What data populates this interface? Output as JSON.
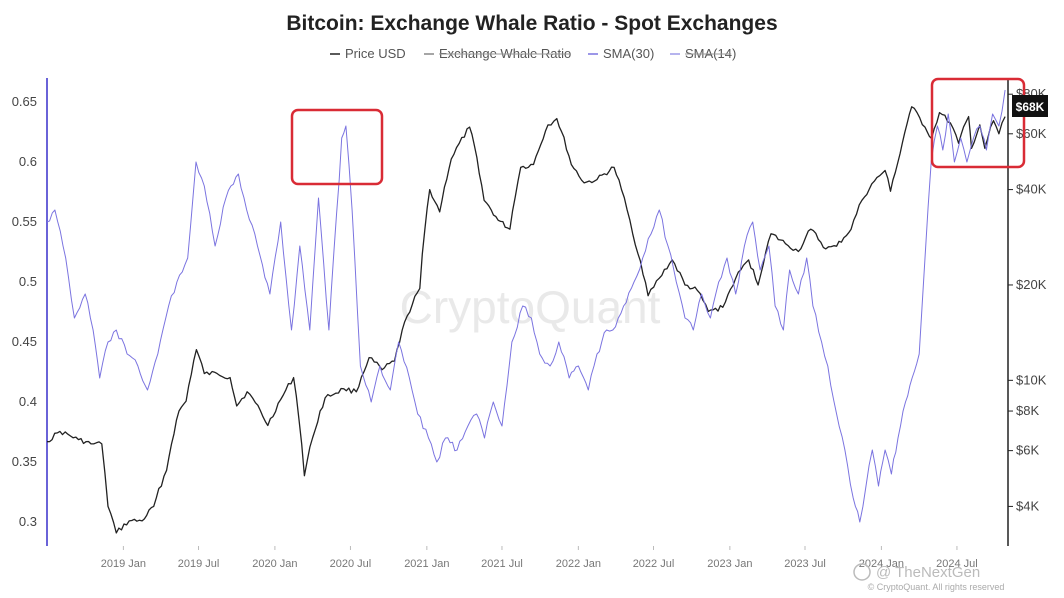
{
  "chart_data": {
    "type": "line",
    "title": "Bitcoin: Exchange Whale Ratio - Spot Exchanges",
    "legend": {
      "placement": "top-center",
      "items": [
        {
          "label": "Price USD",
          "color": "#222222",
          "hidden": false
        },
        {
          "label": "Exchange Whale Ratio",
          "color": "#888888",
          "hidden": true
        },
        {
          "label": "SMA(30)",
          "color": "#7b74e0",
          "hidden": false
        },
        {
          "label": "SMA(14)",
          "color": "#9d9ae8",
          "hidden": true
        }
      ]
    },
    "x_ticks": [
      "2019 Jan",
      "2019 Jul",
      "2020 Jan",
      "2020 Jul",
      "2021 Jan",
      "2021 Jul",
      "2022 Jan",
      "2022 Jul",
      "2023 Jan",
      "2023 Jul",
      "2024 Jan",
      "2024 Jul"
    ],
    "x_range": [
      "2018-07-01",
      "2024-11-01"
    ],
    "y_left": {
      "ticks": [
        "0.3",
        "0.35",
        "0.4",
        "0.45",
        "0.5",
        "0.55",
        "0.6",
        "0.65"
      ],
      "range": [
        0.28,
        0.67
      ]
    },
    "y_right": {
      "scale": "log",
      "ticks": [
        "$4K",
        "$6K",
        "$8K",
        "$10K",
        "$20K",
        "$40K",
        "$60K",
        "$80K"
      ],
      "range": [
        3000,
        90000
      ]
    },
    "current_price_label": "$68K",
    "watermark": "CryptoQuant",
    "footer_credit": "© CryptoQuant. All rights reserved",
    "footer_brand": "TheNextGen",
    "grid": false,
    "series": [
      {
        "name": "Price USD",
        "axis": "right",
        "color": "#222222",
        "points": [
          [
            "2018-07-01",
            6400
          ],
          [
            "2018-08-01",
            6900
          ],
          [
            "2018-09-15",
            6500
          ],
          [
            "2018-10-15",
            6300
          ],
          [
            "2018-11-10",
            6300
          ],
          [
            "2018-11-25",
            4000
          ],
          [
            "2018-12-15",
            3300
          ],
          [
            "2019-01-15",
            3600
          ],
          [
            "2019-02-15",
            3600
          ],
          [
            "2019-03-15",
            4000
          ],
          [
            "2019-04-15",
            5200
          ],
          [
            "2019-05-15",
            8000
          ],
          [
            "2019-06-01",
            8600
          ],
          [
            "2019-06-26",
            12500
          ],
          [
            "2019-07-15",
            10500
          ],
          [
            "2019-08-15",
            10500
          ],
          [
            "2019-09-15",
            10200
          ],
          [
            "2019-10-01",
            8300
          ],
          [
            "2019-10-26",
            9200
          ],
          [
            "2019-11-15",
            8500
          ],
          [
            "2019-12-15",
            7200
          ],
          [
            "2020-01-15",
            8700
          ],
          [
            "2020-02-15",
            10200
          ],
          [
            "2020-03-12",
            5000
          ],
          [
            "2020-04-01",
            6600
          ],
          [
            "2020-05-01",
            8800
          ],
          [
            "2020-06-15",
            9400
          ],
          [
            "2020-07-15",
            9200
          ],
          [
            "2020-08-15",
            11800
          ],
          [
            "2020-09-15",
            10800
          ],
          [
            "2020-10-15",
            11500
          ],
          [
            "2020-11-15",
            16000
          ],
          [
            "2020-12-15",
            19500
          ],
          [
            "2021-01-08",
            40000
          ],
          [
            "2021-02-01",
            34000
          ],
          [
            "2021-03-01",
            50000
          ],
          [
            "2021-04-14",
            63000
          ],
          [
            "2021-05-19",
            37000
          ],
          [
            "2021-06-22",
            32000
          ],
          [
            "2021-07-20",
            30000
          ],
          [
            "2021-08-15",
            47000
          ],
          [
            "2021-09-15",
            48000
          ],
          [
            "2021-10-20",
            64000
          ],
          [
            "2021-11-10",
            67000
          ],
          [
            "2021-12-15",
            48000
          ],
          [
            "2022-01-15",
            42000
          ],
          [
            "2022-02-15",
            43000
          ],
          [
            "2022-03-28",
            47000
          ],
          [
            "2022-04-15",
            40000
          ],
          [
            "2022-05-12",
            29000
          ],
          [
            "2022-06-18",
            18500
          ],
          [
            "2022-07-15",
            21000
          ],
          [
            "2022-08-15",
            24000
          ],
          [
            "2022-09-15",
            20000
          ],
          [
            "2022-10-15",
            19200
          ],
          [
            "2022-11-10",
            16500
          ],
          [
            "2022-12-15",
            17000
          ],
          [
            "2023-01-15",
            21000
          ],
          [
            "2023-02-15",
            24000
          ],
          [
            "2023-03-10",
            20000
          ],
          [
            "2023-04-10",
            29000
          ],
          [
            "2023-05-15",
            27000
          ],
          [
            "2023-06-15",
            25500
          ],
          [
            "2023-07-15",
            30000
          ],
          [
            "2023-08-20",
            26000
          ],
          [
            "2023-09-15",
            26500
          ],
          [
            "2023-10-20",
            30000
          ],
          [
            "2023-11-15",
            37000
          ],
          [
            "2023-12-15",
            42500
          ],
          [
            "2024-01-10",
            46000
          ],
          [
            "2024-01-23",
            39500
          ],
          [
            "2024-02-15",
            52000
          ],
          [
            "2024-03-14",
            73000
          ],
          [
            "2024-04-15",
            63000
          ],
          [
            "2024-05-01",
            58000
          ],
          [
            "2024-05-20",
            70000
          ],
          [
            "2024-06-15",
            65000
          ],
          [
            "2024-07-05",
            56000
          ],
          [
            "2024-07-29",
            68000
          ],
          [
            "2024-08-05",
            54000
          ],
          [
            "2024-08-25",
            64000
          ],
          [
            "2024-09-06",
            54000
          ],
          [
            "2024-09-27",
            66000
          ],
          [
            "2024-10-10",
            60000
          ],
          [
            "2024-10-25",
            68000
          ]
        ]
      },
      {
        "name": "SMA(30)",
        "axis": "left",
        "color": "#7b74e0",
        "points": [
          [
            "2018-07-01",
            0.55
          ],
          [
            "2018-07-20",
            0.56
          ],
          [
            "2018-08-15",
            0.52
          ],
          [
            "2018-09-05",
            0.47
          ],
          [
            "2018-10-01",
            0.49
          ],
          [
            "2018-10-20",
            0.46
          ],
          [
            "2018-11-05",
            0.42
          ],
          [
            "2018-11-25",
            0.45
          ],
          [
            "2018-12-15",
            0.46
          ],
          [
            "2019-01-10",
            0.44
          ],
          [
            "2019-02-05",
            0.43
          ],
          [
            "2019-02-28",
            0.41
          ],
          [
            "2019-03-25",
            0.44
          ],
          [
            "2019-04-20",
            0.48
          ],
          [
            "2019-05-10",
            0.5
          ],
          [
            "2019-06-05",
            0.52
          ],
          [
            "2019-06-25",
            0.6
          ],
          [
            "2019-07-15",
            0.58
          ],
          [
            "2019-08-10",
            0.53
          ],
          [
            "2019-09-05",
            0.57
          ],
          [
            "2019-10-05",
            0.59
          ],
          [
            "2019-10-25",
            0.56
          ],
          [
            "2019-11-20",
            0.53
          ],
          [
            "2019-12-20",
            0.49
          ],
          [
            "2020-01-15",
            0.55
          ],
          [
            "2020-02-10",
            0.46
          ],
          [
            "2020-03-01",
            0.53
          ],
          [
            "2020-03-25",
            0.46
          ],
          [
            "2020-04-15",
            0.57
          ],
          [
            "2020-05-10",
            0.46
          ],
          [
            "2020-06-10",
            0.62
          ],
          [
            "2020-06-20",
            0.63
          ],
          [
            "2020-07-05",
            0.56
          ],
          [
            "2020-07-25",
            0.43
          ],
          [
            "2020-08-20",
            0.4
          ],
          [
            "2020-09-10",
            0.43
          ],
          [
            "2020-10-05",
            0.41
          ],
          [
            "2020-10-25",
            0.45
          ],
          [
            "2020-11-20",
            0.42
          ],
          [
            "2020-12-10",
            0.39
          ],
          [
            "2021-01-05",
            0.37
          ],
          [
            "2021-01-25",
            0.35
          ],
          [
            "2021-02-15",
            0.37
          ],
          [
            "2021-03-15",
            0.36
          ],
          [
            "2021-04-10",
            0.38
          ],
          [
            "2021-05-01",
            0.39
          ],
          [
            "2021-05-20",
            0.37
          ],
          [
            "2021-06-10",
            0.4
          ],
          [
            "2021-07-01",
            0.38
          ],
          [
            "2021-07-25",
            0.45
          ],
          [
            "2021-08-20",
            0.48
          ],
          [
            "2021-09-10",
            0.47
          ],
          [
            "2021-09-30",
            0.44
          ],
          [
            "2021-10-25",
            0.43
          ],
          [
            "2021-11-15",
            0.45
          ],
          [
            "2021-12-10",
            0.42
          ],
          [
            "2022-01-01",
            0.43
          ],
          [
            "2022-01-25",
            0.41
          ],
          [
            "2022-02-15",
            0.44
          ],
          [
            "2022-03-10",
            0.46
          ],
          [
            "2022-03-25",
            0.46
          ],
          [
            "2022-04-20",
            0.48
          ],
          [
            "2022-05-15",
            0.5
          ],
          [
            "2022-06-05",
            0.52
          ],
          [
            "2022-06-25",
            0.54
          ],
          [
            "2022-07-15",
            0.56
          ],
          [
            "2022-08-05",
            0.53
          ],
          [
            "2022-08-25",
            0.5
          ],
          [
            "2022-09-15",
            0.47
          ],
          [
            "2022-10-05",
            0.46
          ],
          [
            "2022-10-25",
            0.49
          ],
          [
            "2022-11-15",
            0.47
          ],
          [
            "2022-12-05",
            0.5
          ],
          [
            "2022-12-25",
            0.52
          ],
          [
            "2023-01-15",
            0.49
          ],
          [
            "2023-02-05",
            0.53
          ],
          [
            "2023-02-25",
            0.55
          ],
          [
            "2023-03-15",
            0.51
          ],
          [
            "2023-04-05",
            0.53
          ],
          [
            "2023-04-20",
            0.48
          ],
          [
            "2023-05-10",
            0.46
          ],
          [
            "2023-05-25",
            0.51
          ],
          [
            "2023-06-15",
            0.49
          ],
          [
            "2023-07-05",
            0.52
          ],
          [
            "2023-07-20",
            0.48
          ],
          [
            "2023-08-10",
            0.45
          ],
          [
            "2023-08-25",
            0.43
          ],
          [
            "2023-09-15",
            0.39
          ],
          [
            "2023-10-05",
            0.36
          ],
          [
            "2023-10-25",
            0.32
          ],
          [
            "2023-11-10",
            0.3
          ],
          [
            "2023-11-25",
            0.33
          ],
          [
            "2023-12-10",
            0.36
          ],
          [
            "2023-12-25",
            0.33
          ],
          [
            "2024-01-10",
            0.36
          ],
          [
            "2024-01-25",
            0.34
          ],
          [
            "2024-02-10",
            0.37
          ],
          [
            "2024-02-28",
            0.4
          ],
          [
            "2024-03-15",
            0.42
          ],
          [
            "2024-04-01",
            0.44
          ],
          [
            "2024-04-15",
            0.52
          ],
          [
            "2024-04-30",
            0.6
          ],
          [
            "2024-05-15",
            0.63
          ],
          [
            "2024-05-28",
            0.61
          ],
          [
            "2024-06-10",
            0.64
          ],
          [
            "2024-06-25",
            0.6
          ],
          [
            "2024-07-10",
            0.62
          ],
          [
            "2024-07-25",
            0.6
          ],
          [
            "2024-08-10",
            0.62
          ],
          [
            "2024-08-25",
            0.63
          ],
          [
            "2024-09-10",
            0.61
          ],
          [
            "2024-09-25",
            0.64
          ],
          [
            "2024-10-10",
            0.63
          ],
          [
            "2024-10-25",
            0.66
          ]
        ]
      }
    ]
  }
}
